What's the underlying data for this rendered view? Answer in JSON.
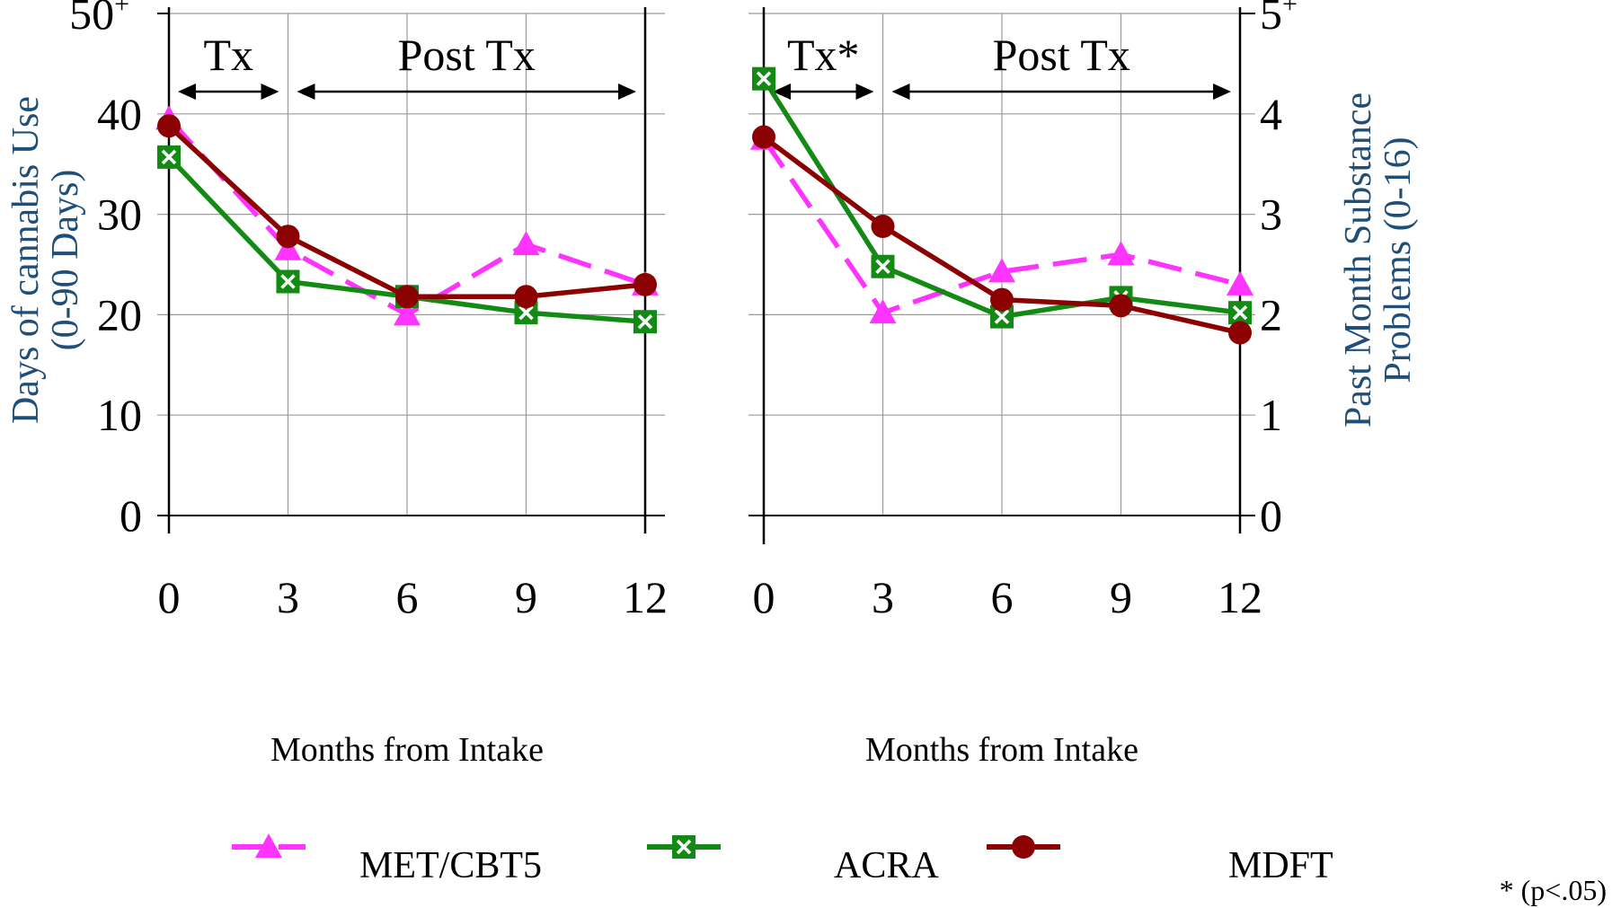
{
  "figure": {
    "legend": [
      {
        "name": "MET/CBT5",
        "color": "#ff33ff",
        "marker": "triangle",
        "dash": true
      },
      {
        "name": "ACRA",
        "color": "#138a13",
        "marker": "boxed-x",
        "dash": false
      },
      {
        "name": "MDFT",
        "color": "#8b0000",
        "marker": "circle",
        "dash": false
      }
    ],
    "footnote": "* (p<.05)"
  },
  "chart_data": [
    {
      "type": "line",
      "title": "",
      "xlabel": "Months from Intake",
      "ylabel_line1": "Days of cannabis Use",
      "ylabel_line2": "(0-90 Days)",
      "x": [
        0,
        3,
        6,
        9,
        12
      ],
      "x_ticks": [
        "0",
        "3",
        "6",
        "9",
        "12"
      ],
      "y_ticks": [
        "0",
        "10",
        "20",
        "30",
        "40",
        "50"
      ],
      "y_top_suffix": "+",
      "ylim": [
        0,
        50
      ],
      "grid": true,
      "phases": [
        {
          "label": "Tx",
          "from": 0,
          "to": 3
        },
        {
          "label": "Post Tx",
          "from": 3,
          "to": 12
        }
      ],
      "series": [
        {
          "name": "MET/CBT5",
          "values": [
            39.5,
            26.5,
            20.0,
            27.0,
            23.0
          ]
        },
        {
          "name": "ACRA",
          "values": [
            35.7,
            23.3,
            21.8,
            20.2,
            19.3
          ]
        },
        {
          "name": "MDFT",
          "values": [
            38.8,
            27.8,
            21.8,
            21.8,
            23.0
          ]
        }
      ]
    },
    {
      "type": "line",
      "title": "",
      "xlabel": "Months from Intake",
      "ylabel_line1": "Past Month Substance",
      "ylabel_line2": "Problems (0-16)",
      "x": [
        0,
        3,
        6,
        9,
        12
      ],
      "x_ticks": [
        "0",
        "3",
        "6",
        "9",
        "12"
      ],
      "y_ticks": [
        "0",
        "1",
        "2",
        "3",
        "4",
        "5"
      ],
      "y_top_suffix": "+",
      "ylim": [
        0,
        5
      ],
      "grid": true,
      "phases": [
        {
          "label": "Tx*",
          "from": 0,
          "to": 3
        },
        {
          "label": "Post Tx",
          "from": 3,
          "to": 12
        }
      ],
      "series": [
        {
          "name": "MET/CBT5",
          "values": [
            3.75,
            2.02,
            2.43,
            2.6,
            2.3
          ]
        },
        {
          "name": "ACRA",
          "values": [
            4.35,
            2.48,
            1.98,
            2.17,
            2.02
          ]
        },
        {
          "name": "MDFT",
          "values": [
            3.77,
            2.88,
            2.15,
            2.09,
            1.82
          ]
        }
      ]
    }
  ]
}
